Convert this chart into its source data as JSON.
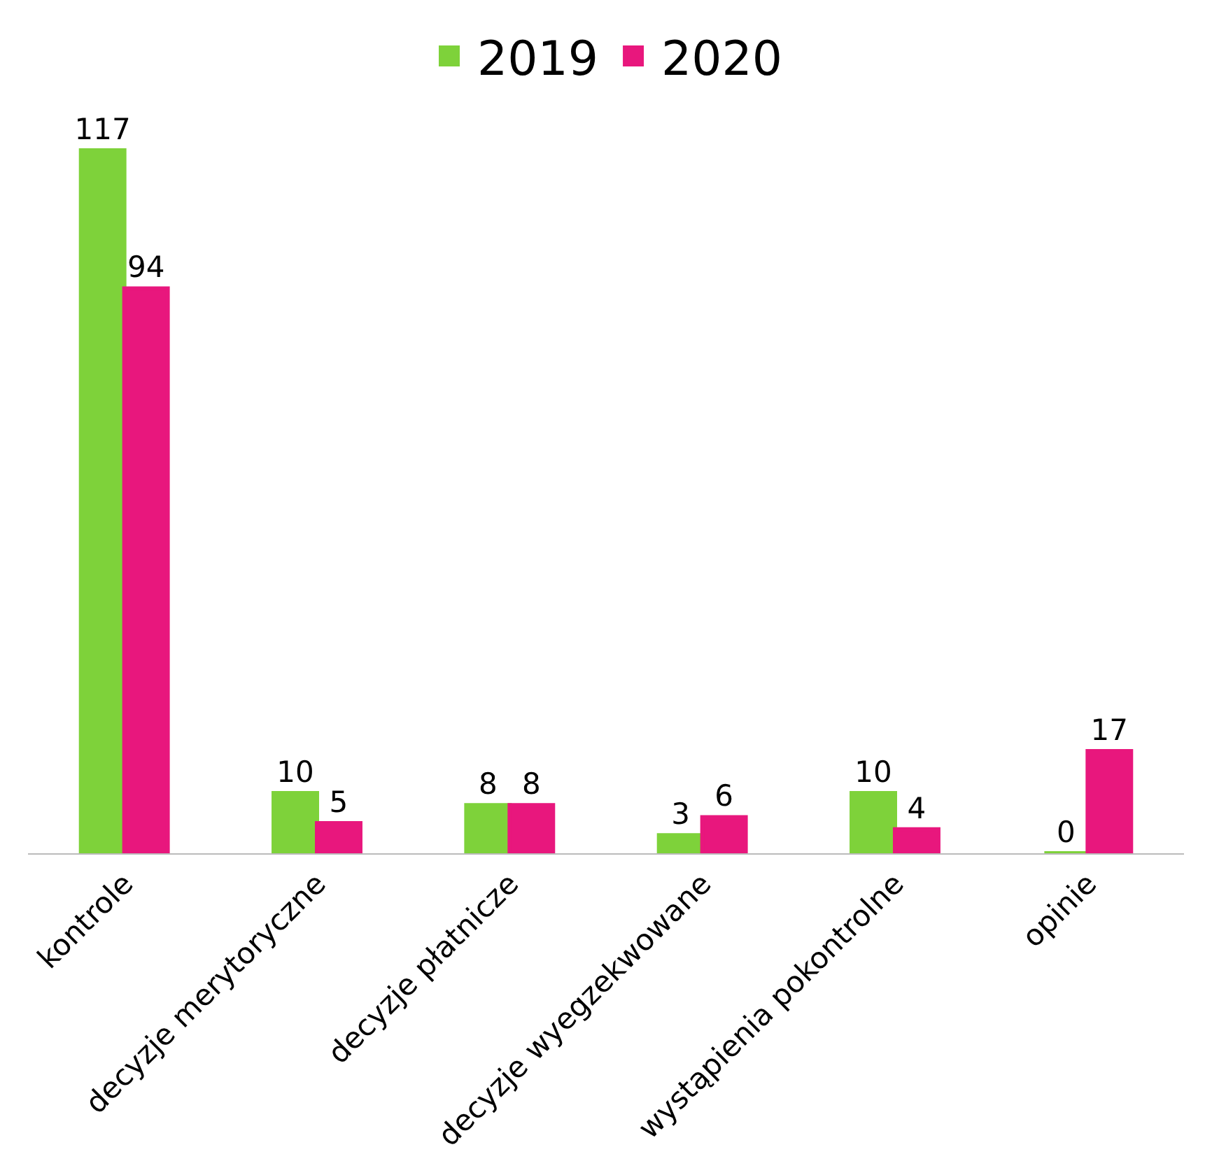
{
  "chart_data": {
    "type": "bar",
    "categories": [
      "kontrole",
      "decyzje merytoryczne",
      "decyzje płatnicze",
      "decyzje wyegzekwowane",
      "wystąpienia pokontrolne",
      "opinie"
    ],
    "series": [
      {
        "name": "2019",
        "color": "#7ed23a",
        "values": [
          117,
          10,
          8,
          3,
          10,
          0
        ]
      },
      {
        "name": "2020",
        "color": "#e8177d",
        "values": [
          94,
          5,
          8,
          6,
          4,
          17
        ]
      }
    ],
    "data_labels": true,
    "legend": "top",
    "grid": false,
    "tick_labels": "x"
  }
}
